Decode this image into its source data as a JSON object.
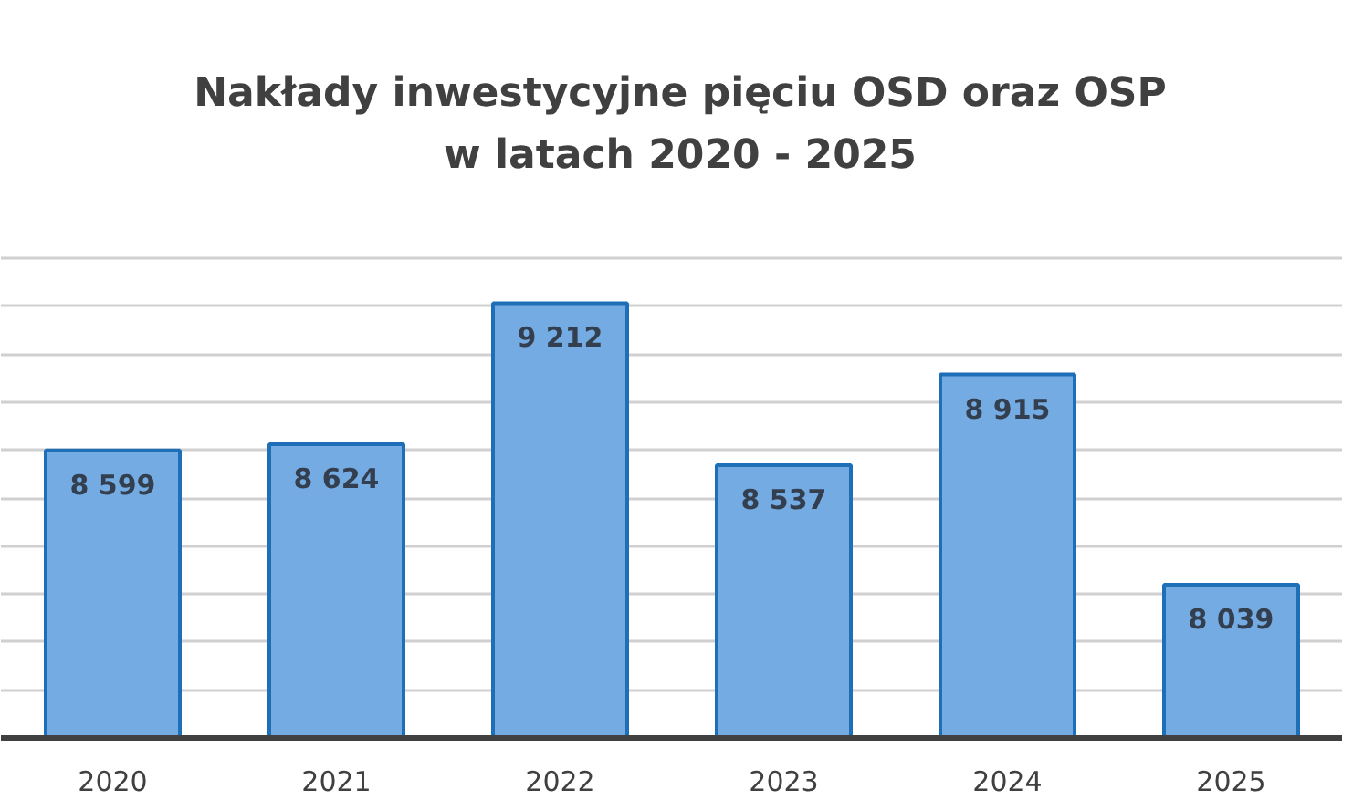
{
  "chart_data": {
    "type": "bar",
    "title": "Nakłady inwestycyjne pięciu OSD oraz OSP\nw latach 2020 - 2025",
    "categories": [
      "2020",
      "2021",
      "2022",
      "2023",
      "2024",
      "2025"
    ],
    "values": [
      8599,
      8624,
      9212,
      8537,
      8915,
      8039
    ],
    "value_labels": [
      "8 599",
      "8 624",
      "9 212",
      "8 537",
      "8 915",
      "8 039"
    ],
    "color": "#74abe2",
    "ylim": [
      7400,
      9400
    ],
    "yticks": [
      {
        "value": 7600,
        "label": null
      },
      {
        "value": 7800,
        "label": null
      },
      {
        "value": 8000,
        "label": null
      },
      {
        "value": 8200,
        "label": null
      },
      {
        "value": 8400,
        "label": null
      },
      {
        "value": 8600,
        "label": null
      },
      {
        "value": 8800,
        "label": null
      },
      {
        "value": 9000,
        "label": null
      },
      {
        "value": 9200,
        "label": null
      },
      {
        "value": 9400,
        "label": null
      }
    ],
    "grid": "y",
    "tick_labels": "x"
  }
}
